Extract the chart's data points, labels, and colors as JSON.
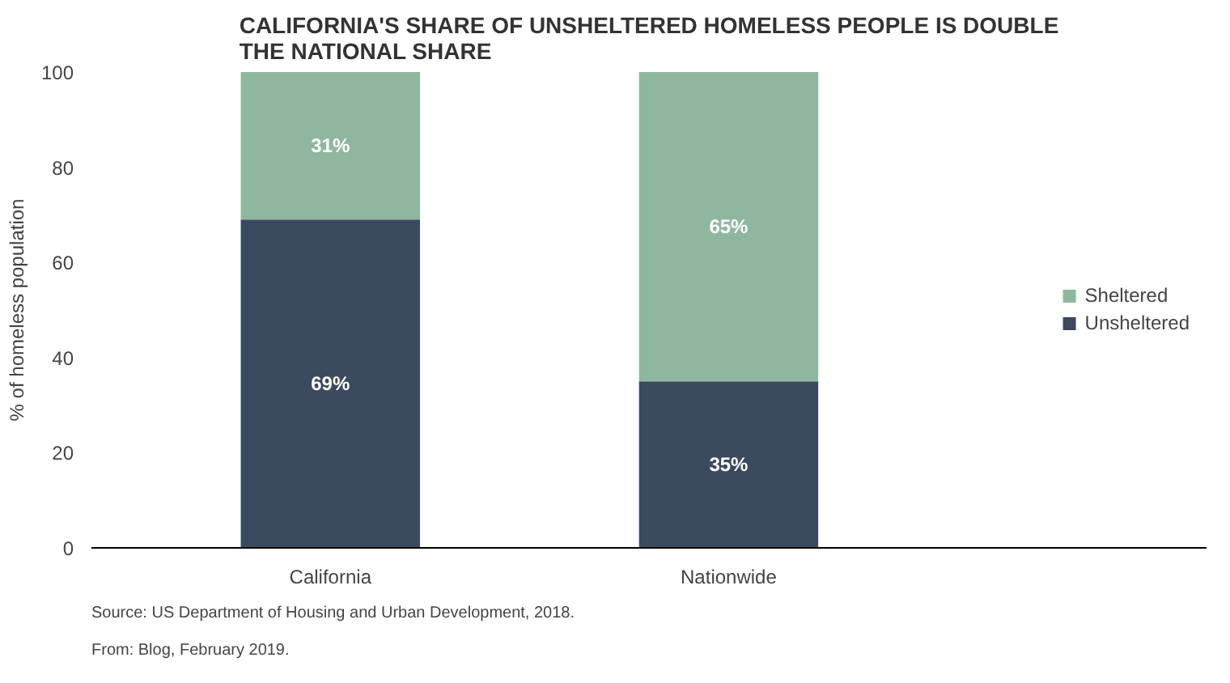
{
  "chart_data": {
    "type": "bar",
    "stacked": true,
    "title": "CALIFORNIA'S SHARE OF UNSHELTERED HOMELESS PEOPLE IS DOUBLE\nTHE NATIONAL SHARE",
    "ylabel": "% of homeless population",
    "categories": [
      "California",
      "Nationwide"
    ],
    "series": [
      {
        "name": "Unsheltered",
        "color": "#3b4a5e",
        "values": [
          69,
          35
        ],
        "value_labels": [
          "69%",
          "35%"
        ]
      },
      {
        "name": "Sheltered",
        "color": "#8fb7a0",
        "values": [
          31,
          65
        ],
        "value_labels": [
          "31%",
          "65%"
        ]
      }
    ],
    "ylim": [
      0,
      100
    ],
    "yticks": [
      0,
      20,
      40,
      60,
      80,
      100
    ],
    "grid": false,
    "legend": "right",
    "annotations": [
      "Source: US Department of Housing and Urban Development, 2018.",
      "From: Blog, February 2019."
    ]
  }
}
